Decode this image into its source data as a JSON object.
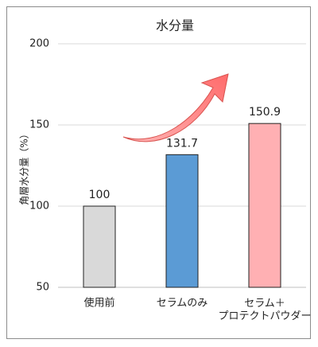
{
  "chart_data": {
    "type": "bar",
    "title": "水分量",
    "y_label": "角層水分量（%）",
    "categories": [
      "使用前",
      "セラムのみ",
      "セラム＋\nプロテクトパウダー"
    ],
    "values": [
      100,
      131.7,
      150.9
    ],
    "colors": [
      "#d9d9d9",
      "#5b9bd5",
      "#ffb0b3"
    ],
    "ylim": [
      50,
      200
    ],
    "yticks": [
      50,
      100,
      150,
      200
    ],
    "grid": true
  }
}
